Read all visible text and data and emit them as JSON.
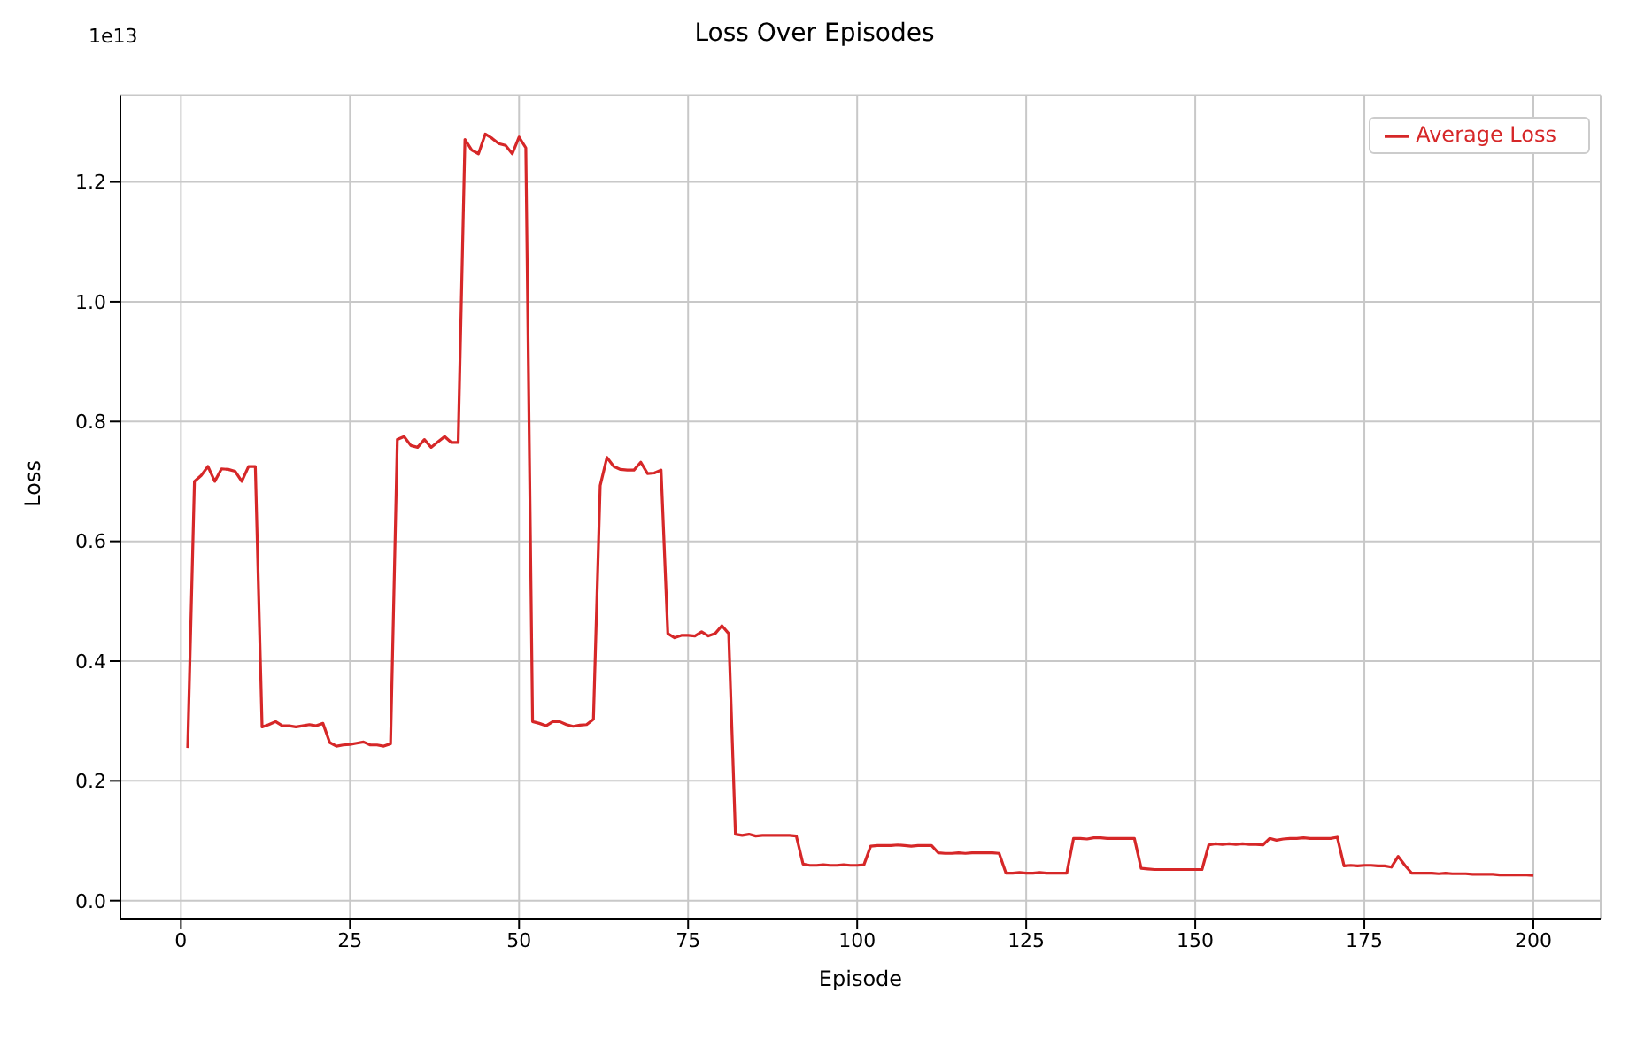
{
  "chart_data": {
    "type": "line",
    "title": "Loss Over Episodes",
    "xlabel": "Episode",
    "ylabel": "Loss",
    "annotations": [
      "1e13"
    ],
    "x": [
      1,
      2,
      3,
      4,
      5,
      6,
      7,
      8,
      9,
      10,
      11,
      12,
      13,
      14,
      15,
      16,
      17,
      18,
      19,
      20,
      21,
      22,
      23,
      24,
      25,
      26,
      27,
      28,
      29,
      30,
      31,
      32,
      33,
      34,
      35,
      36,
      37,
      38,
      39,
      40,
      41,
      42,
      43,
      44,
      45,
      46,
      47,
      48,
      49,
      50,
      51,
      52,
      53,
      54,
      55,
      56,
      57,
      58,
      59,
      60,
      61,
      62,
      63,
      64,
      65,
      66,
      67,
      68,
      69,
      70,
      71,
      72,
      73,
      74,
      75,
      76,
      77,
      78,
      79,
      80,
      81,
      82,
      83,
      84,
      85,
      86,
      87,
      88,
      89,
      90,
      91,
      92,
      93,
      94,
      95,
      96,
      97,
      98,
      99,
      100,
      101,
      102,
      103,
      104,
      105,
      106,
      107,
      108,
      109,
      110,
      111,
      112,
      113,
      114,
      115,
      116,
      117,
      118,
      119,
      120,
      121,
      122,
      123,
      124,
      125,
      126,
      127,
      128,
      129,
      130,
      131,
      132,
      133,
      134,
      135,
      136,
      137,
      138,
      139,
      140,
      141,
      142,
      143,
      144,
      145,
      146,
      147,
      148,
      149,
      150,
      151,
      152,
      153,
      154,
      155,
      156,
      157,
      158,
      159,
      160,
      161,
      162,
      163,
      164,
      165,
      166,
      167,
      168,
      169,
      170,
      171,
      172,
      173,
      174,
      175,
      176,
      177,
      178,
      179,
      180,
      181,
      182,
      183,
      184,
      185,
      186,
      187,
      188,
      189,
      190,
      191,
      192,
      193,
      194,
      195,
      196,
      197,
      198,
      199,
      200
    ],
    "series": [
      {
        "name": "Average Loss",
        "color": "#d62728",
        "values": [
          0.255,
          0.7,
          0.71,
          0.725,
          0.7,
          0.721,
          0.72,
          0.717,
          0.7,
          0.725,
          0.725,
          0.29,
          0.294,
          0.299,
          0.292,
          0.292,
          0.29,
          0.292,
          0.294,
          0.292,
          0.296,
          0.264,
          0.258,
          0.26,
          0.261,
          0.263,
          0.265,
          0.26,
          0.26,
          0.258,
          0.262,
          0.77,
          0.775,
          0.76,
          0.757,
          0.77,
          0.757,
          0.766,
          0.775,
          0.765,
          0.765,
          1.271,
          1.253,
          1.247,
          1.28,
          1.273,
          1.264,
          1.261,
          1.247,
          1.275,
          1.257,
          0.299,
          0.296,
          0.292,
          0.299,
          0.299,
          0.294,
          0.291,
          0.293,
          0.294,
          0.303,
          0.693,
          0.74,
          0.725,
          0.72,
          0.719,
          0.719,
          0.732,
          0.713,
          0.714,
          0.719,
          0.446,
          0.439,
          0.443,
          0.443,
          0.442,
          0.449,
          0.442,
          0.446,
          0.459,
          0.446,
          0.111,
          0.109,
          0.111,
          0.108,
          0.109,
          0.109,
          0.109,
          0.109,
          0.109,
          0.108,
          0.061,
          0.059,
          0.059,
          0.06,
          0.059,
          0.059,
          0.06,
          0.059,
          0.059,
          0.06,
          0.091,
          0.092,
          0.092,
          0.092,
          0.093,
          0.092,
          0.091,
          0.092,
          0.092,
          0.092,
          0.08,
          0.079,
          0.079,
          0.08,
          0.079,
          0.08,
          0.08,
          0.08,
          0.08,
          0.079,
          0.046,
          0.046,
          0.047,
          0.046,
          0.046,
          0.047,
          0.046,
          0.046,
          0.046,
          0.046,
          0.104,
          0.104,
          0.103,
          0.105,
          0.105,
          0.104,
          0.104,
          0.104,
          0.104,
          0.104,
          0.054,
          0.053,
          0.052,
          0.052,
          0.052,
          0.052,
          0.052,
          0.052,
          0.052,
          0.052,
          0.093,
          0.095,
          0.094,
          0.095,
          0.094,
          0.095,
          0.094,
          0.094,
          0.093,
          0.104,
          0.101,
          0.103,
          0.104,
          0.104,
          0.105,
          0.104,
          0.104,
          0.104,
          0.104,
          0.106,
          0.058,
          0.059,
          0.058,
          0.059,
          0.059,
          0.058,
          0.058,
          0.056,
          0.074,
          0.059,
          0.046,
          0.046,
          0.046,
          0.046,
          0.045,
          0.046,
          0.045,
          0.045,
          0.045,
          0.044,
          0.044,
          0.044,
          0.044,
          0.043,
          0.043,
          0.043,
          0.043,
          0.043,
          0.042
        ]
      }
    ],
    "xlim": [
      -8.95,
      209.95
    ],
    "xticks": [
      0,
      25,
      50,
      75,
      100,
      125,
      150,
      175,
      200
    ],
    "ylim": [
      -0.03,
      1.345
    ],
    "yticks": [
      {
        "value": 0,
        "label": "0.0"
      },
      0.2,
      0.4,
      0.6,
      0.8,
      {
        "value": 1,
        "label": "1.0"
      },
      1.2
    ],
    "grid": true,
    "legend": "top right"
  }
}
